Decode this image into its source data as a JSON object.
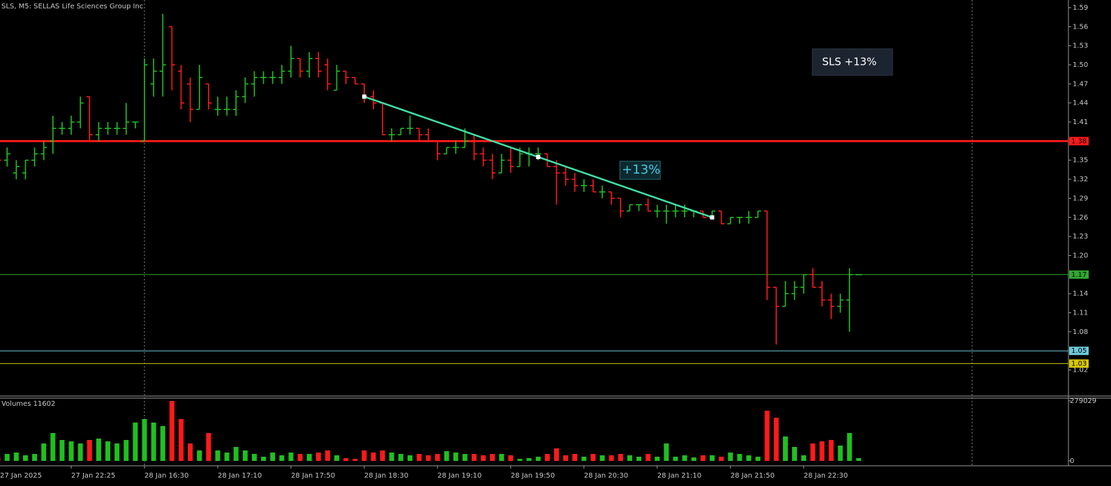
{
  "chart_data": {
    "type": "ohlc",
    "title": "SLS, M5:  SELLAS Life Sciences Group Inc",
    "box_label": "SLS +13%",
    "categories": [
      "27 Jan 2025",
      null,
      null,
      null,
      null,
      null,
      null,
      null,
      "27 Jan 22:25",
      null,
      null,
      null,
      null,
      null,
      null,
      null,
      "28 Jan 16:30",
      null,
      null,
      null,
      null,
      null,
      null,
      null,
      "28 Jan 17:10",
      null,
      null,
      null,
      null,
      null,
      null,
      null,
      "28 Jan 17:50",
      null,
      null,
      null,
      null,
      null,
      null,
      null,
      "28 Jan 18:30",
      null,
      null,
      null,
      null,
      null,
      null,
      null,
      "28 Jan 19:10",
      null,
      null,
      null,
      null,
      null,
      null,
      null,
      "28 Jan 19:50",
      null,
      null,
      null,
      null,
      null,
      null,
      null,
      "28 Jan 20:30",
      null,
      null,
      null,
      null,
      null,
      null,
      null,
      "28 Jan 21:10",
      null,
      null,
      null,
      null,
      null,
      null,
      null,
      "28 Jan 21:50",
      null,
      null,
      null,
      null,
      null,
      null,
      null,
      "28 Jan 22:30",
      null,
      null,
      null,
      null,
      null,
      null
    ],
    "open": [
      1.36,
      1.35,
      1.33,
      1.33,
      1.35,
      1.36,
      1.38,
      1.4,
      1.4,
      1.41,
      1.45,
      1.39,
      1.4,
      1.4,
      1.4,
      1.41,
      1.38,
      1.47,
      1.49,
      1.56,
      1.49,
      1.47,
      1.43,
      1.47,
      1.43,
      1.43,
      1.43,
      1.45,
      1.47,
      1.48,
      1.48,
      1.48,
      1.49,
      1.51,
      1.49,
      1.51,
      1.5,
      1.46,
      1.49,
      1.48,
      1.47,
      1.45,
      1.44,
      1.39,
      1.39,
      1.4,
      1.4,
      1.39,
      1.38,
      1.36,
      1.37,
      1.37,
      1.38,
      1.36,
      1.35,
      1.33,
      1.35,
      1.34,
      1.36,
      1.36,
      1.36,
      1.34,
      1.33,
      1.32,
      1.31,
      1.31,
      1.3,
      1.3,
      1.29,
      1.27,
      1.28,
      1.28,
      1.27,
      1.27,
      1.27,
      1.27,
      1.27,
      1.27,
      1.26,
      1.27,
      1.25,
      1.26,
      1.26,
      1.26,
      1.27,
      1.15,
      1.12,
      1.14,
      1.15,
      1.17,
      1.15,
      1.13,
      1.12,
      1.13,
      1.17
    ],
    "high": [
      1.37,
      1.37,
      1.35,
      1.35,
      1.37,
      1.38,
      1.42,
      1.41,
      1.42,
      1.45,
      1.45,
      1.41,
      1.41,
      1.41,
      1.44,
      1.41,
      1.51,
      1.51,
      1.58,
      1.56,
      1.5,
      1.48,
      1.5,
      1.47,
      1.45,
      1.45,
      1.46,
      1.48,
      1.49,
      1.49,
      1.49,
      1.5,
      1.53,
      1.51,
      1.52,
      1.52,
      1.51,
      1.5,
      1.49,
      1.48,
      1.47,
      1.46,
      1.44,
      1.4,
      1.4,
      1.42,
      1.4,
      1.4,
      1.38,
      1.37,
      1.38,
      1.4,
      1.39,
      1.37,
      1.36,
      1.36,
      1.37,
      1.37,
      1.37,
      1.37,
      1.36,
      1.35,
      1.34,
      1.33,
      1.32,
      1.32,
      1.31,
      1.3,
      1.29,
      1.28,
      1.28,
      1.29,
      1.28,
      1.28,
      1.28,
      1.28,
      1.27,
      1.27,
      1.27,
      1.27,
      1.26,
      1.26,
      1.27,
      1.27,
      1.27,
      1.15,
      1.16,
      1.16,
      1.17,
      1.18,
      1.16,
      1.14,
      1.14,
      1.18,
      1.17
    ],
    "low": [
      1.34,
      1.34,
      1.32,
      1.32,
      1.34,
      1.35,
      1.36,
      1.39,
      1.39,
      1.4,
      1.38,
      1.38,
      1.39,
      1.39,
      1.39,
      1.4,
      1.38,
      1.45,
      1.45,
      1.46,
      1.43,
      1.41,
      1.43,
      1.43,
      1.42,
      1.42,
      1.42,
      1.44,
      1.45,
      1.47,
      1.47,
      1.47,
      1.48,
      1.48,
      1.48,
      1.48,
      1.46,
      1.46,
      1.47,
      1.47,
      1.44,
      1.43,
      1.39,
      1.38,
      1.39,
      1.39,
      1.38,
      1.38,
      1.35,
      1.36,
      1.36,
      1.37,
      1.35,
      1.34,
      1.32,
      1.33,
      1.33,
      1.34,
      1.34,
      1.35,
      1.34,
      1.28,
      1.31,
      1.3,
      1.3,
      1.3,
      1.29,
      1.28,
      1.26,
      1.27,
      1.27,
      1.27,
      1.26,
      1.25,
      1.26,
      1.26,
      1.26,
      1.26,
      1.26,
      1.25,
      1.25,
      1.25,
      1.25,
      1.26,
      1.13,
      1.06,
      1.12,
      1.13,
      1.14,
      1.15,
      1.12,
      1.1,
      1.11,
      1.08,
      1.17
    ],
    "close": [
      1.35,
      1.36,
      1.34,
      1.35,
      1.36,
      1.37,
      1.4,
      1.4,
      1.41,
      1.44,
      1.39,
      1.4,
      1.4,
      1.4,
      1.41,
      1.41,
      1.5,
      1.49,
      1.5,
      1.5,
      1.44,
      1.43,
      1.48,
      1.44,
      1.43,
      1.43,
      1.45,
      1.47,
      1.48,
      1.48,
      1.48,
      1.49,
      1.51,
      1.49,
      1.51,
      1.49,
      1.47,
      1.49,
      1.48,
      1.47,
      1.45,
      1.44,
      1.39,
      1.39,
      1.4,
      1.4,
      1.39,
      1.38,
      1.36,
      1.37,
      1.37,
      1.38,
      1.36,
      1.35,
      1.33,
      1.35,
      1.34,
      1.36,
      1.36,
      1.36,
      1.34,
      1.33,
      1.32,
      1.31,
      1.31,
      1.3,
      1.3,
      1.29,
      1.27,
      1.28,
      1.28,
      1.27,
      1.27,
      1.27,
      1.27,
      1.27,
      1.27,
      1.26,
      1.27,
      1.25,
      1.26,
      1.26,
      1.26,
      1.27,
      1.15,
      1.12,
      1.14,
      1.15,
      1.17,
      1.15,
      1.13,
      1.12,
      1.13,
      1.17,
      1.17
    ],
    "up_color": "#1fc01f",
    "down_color": "#ff1a1a",
    "ylim": [
      0.98,
      1.602
    ],
    "yticks": [
      1.59,
      1.56,
      1.53,
      {
        "value": 1.5,
        "label": "1.50"
      },
      1.47,
      1.44,
      1.41,
      1.35,
      1.32,
      1.29,
      1.26,
      1.23,
      {
        "value": 1.2,
        "label": "1.20"
      },
      1.14,
      1.11,
      1.08,
      1.02
    ],
    "levels": [
      {
        "value": 1.38,
        "color": "#ff1a1a"
      },
      {
        "value": 1.17,
        "color": "#2fa82f"
      },
      {
        "value": 1.05,
        "color": "#6ec8d8"
      },
      {
        "value": 1.03,
        "color": "#d8c800"
      }
    ],
    "trendline": {
      "x": [
        40,
        78
      ],
      "values": [
        1.45,
        1.26
      ],
      "label": "+13%",
      "color": "#40e0a8"
    },
    "volume_label": "Volumes 11602",
    "volumes": [
      16200,
      32400,
      38900,
      26000,
      32400,
      81100,
      129800,
      97400,
      90900,
      81100,
      97400,
      103800,
      90900,
      81100,
      97400,
      178500,
      194700,
      178500,
      162300,
      279000,
      194700,
      81100,
      48700,
      129800,
      48700,
      38900,
      64900,
      48700,
      32400,
      19500,
      38900,
      26000,
      38900,
      32400,
      32400,
      38900,
      48700,
      26000,
      13000,
      9700,
      48700,
      38900,
      48700,
      38900,
      32400,
      26000,
      32400,
      26000,
      32400,
      45400,
      38900,
      32400,
      32400,
      26000,
      32400,
      32400,
      26000,
      9700,
      13000,
      19500,
      32400,
      58400,
      26000,
      32400,
      19500,
      32400,
      26000,
      26000,
      32400,
      26000,
      19500,
      32400,
      19500,
      81100,
      19500,
      26000,
      16200,
      26000,
      26000,
      19500,
      38900,
      32400,
      26000,
      19500,
      233600,
      201200,
      113600,
      64900,
      26000,
      81100,
      90900,
      97400,
      71400,
      129800,
      13000
    ],
    "vlim": [
      0,
      279029
    ],
    "vticks": [
      0,
      279029
    ]
  }
}
